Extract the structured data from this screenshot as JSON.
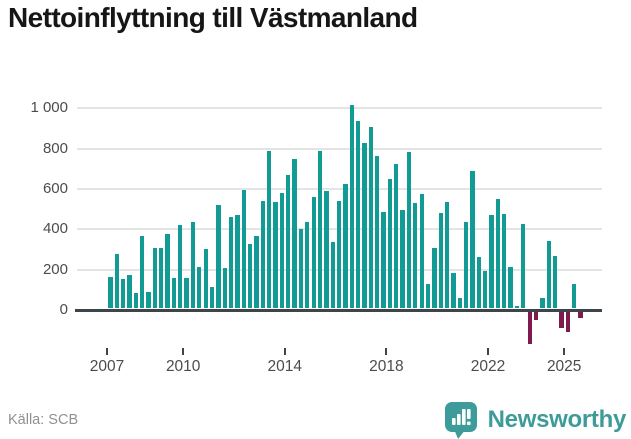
{
  "title": "Nettoinflyttning till Västmanland",
  "footer": {
    "source": "Källa: SCB",
    "brand": "Newsworthy"
  },
  "colors": {
    "positive_bar": "#129a95",
    "negative_bar": "#7e1a4d",
    "axis": "#3e454a",
    "grid": "#e4e4e4",
    "tick_text": "#4c4c4c",
    "title_text": "#161616",
    "source_text": "#8f9192",
    "brand_teal": "#3d9c99"
  },
  "chart_data": {
    "type": "bar",
    "title": "Nettoinflyttning till Västmanland",
    "frequency": "quarterly",
    "start_year": 2007,
    "start_quarter": 1,
    "grid": "horizontal",
    "legend": "none",
    "ylim": [
      -200,
      1050
    ],
    "y_axis": {
      "ticks": [
        0,
        200,
        400,
        600,
        800,
        1000
      ],
      "labels": [
        "0",
        "200",
        "400",
        "600",
        "800",
        "1 000"
      ]
    },
    "x_axis": {
      "tick_years": [
        2007,
        2010,
        2014,
        2018,
        2022,
        2025
      ]
    },
    "series_by_year": [
      {
        "year": 2007,
        "q": [
          155,
          270,
          145,
          165
        ]
      },
      {
        "year": 2008,
        "q": [
          75,
          360,
          80,
          300
        ]
      },
      {
        "year": 2009,
        "q": [
          300,
          370,
          150,
          415
        ]
      },
      {
        "year": 2010,
        "q": [
          150,
          430,
          205,
          295
        ]
      },
      {
        "year": 2011,
        "q": [
          105,
          515,
          200,
          455
        ]
      },
      {
        "year": 2012,
        "q": [
          465,
          585,
          320,
          360
        ]
      },
      {
        "year": 2013,
        "q": [
          535,
          780,
          530,
          570
        ]
      },
      {
        "year": 2014,
        "q": [
          660,
          740,
          395,
          430
        ]
      },
      {
        "year": 2015,
        "q": [
          555,
          780,
          580,
          330
        ]
      },
      {
        "year": 2016,
        "q": [
          535,
          615,
          1010,
          930
        ]
      },
      {
        "year": 2017,
        "q": [
          820,
          900,
          755,
          480
        ]
      },
      {
        "year": 2018,
        "q": [
          640,
          715,
          490,
          775
        ]
      },
      {
        "year": 2019,
        "q": [
          525,
          565,
          120,
          300
        ]
      },
      {
        "year": 2020,
        "q": [
          475,
          530,
          175,
          50
        ]
      },
      {
        "year": 2021,
        "q": [
          430,
          680,
          255,
          185
        ]
      },
      {
        "year": 2022,
        "q": [
          465,
          545,
          470,
          205
        ]
      },
      {
        "year": 2023,
        "q": [
          10,
          420,
          -160,
          -40
        ]
      },
      {
        "year": 2024,
        "q": [
          50,
          335,
          260,
          -80
        ]
      },
      {
        "year": 2025,
        "q": [
          -100,
          120,
          -30
        ]
      }
    ]
  }
}
